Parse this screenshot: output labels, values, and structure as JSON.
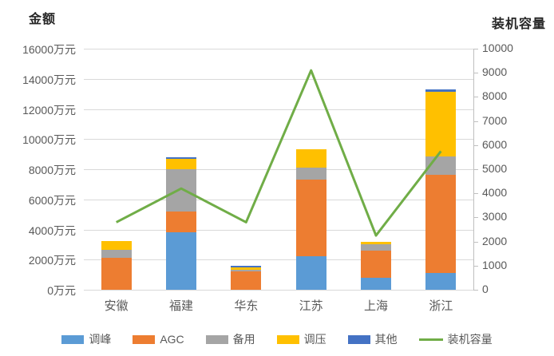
{
  "chart_data": {
    "type": "bar",
    "subtype": "stacked-bar-with-line-combo",
    "categories": [
      "安徽",
      "福建",
      "华东",
      "江苏",
      "上海",
      "浙江"
    ],
    "bar_series": [
      {
        "name": "调峰",
        "color": "#5B9BD5",
        "values": [
          0,
          3800,
          0,
          2200,
          800,
          1100
        ]
      },
      {
        "name": "AGC",
        "color": "#ED7D31",
        "values": [
          2100,
          1400,
          1200,
          5100,
          1800,
          6550
        ]
      },
      {
        "name": "备用",
        "color": "#A5A5A5",
        "values": [
          550,
          2800,
          100,
          800,
          400,
          1200
        ]
      },
      {
        "name": "调压",
        "color": "#FFC000",
        "values": [
          600,
          700,
          200,
          1200,
          200,
          4300
        ]
      },
      {
        "name": "其他",
        "color": "#4472C4",
        "values": [
          0,
          100,
          100,
          0,
          0,
          150
        ]
      }
    ],
    "line_series": {
      "name": "装机容量",
      "color": "#70AD47",
      "values": [
        2800,
        4200,
        2800,
        9100,
        2250,
        5750
      ]
    },
    "left_axis": {
      "title": "金额",
      "min": 0,
      "max": 16000,
      "step": 2000,
      "suffix": "万元"
    },
    "right_axis": {
      "title": "装机容量",
      "min": 0,
      "max": 10000,
      "step": 1000,
      "suffix": ""
    },
    "grid": "horizontal",
    "legend_position": "bottom"
  },
  "colors": {
    "gridline": "#d9d9d9",
    "axis_line": "#bfbfbf",
    "axis_text": "#595959",
    "title_text": "#262626",
    "background": "#ffffff"
  }
}
